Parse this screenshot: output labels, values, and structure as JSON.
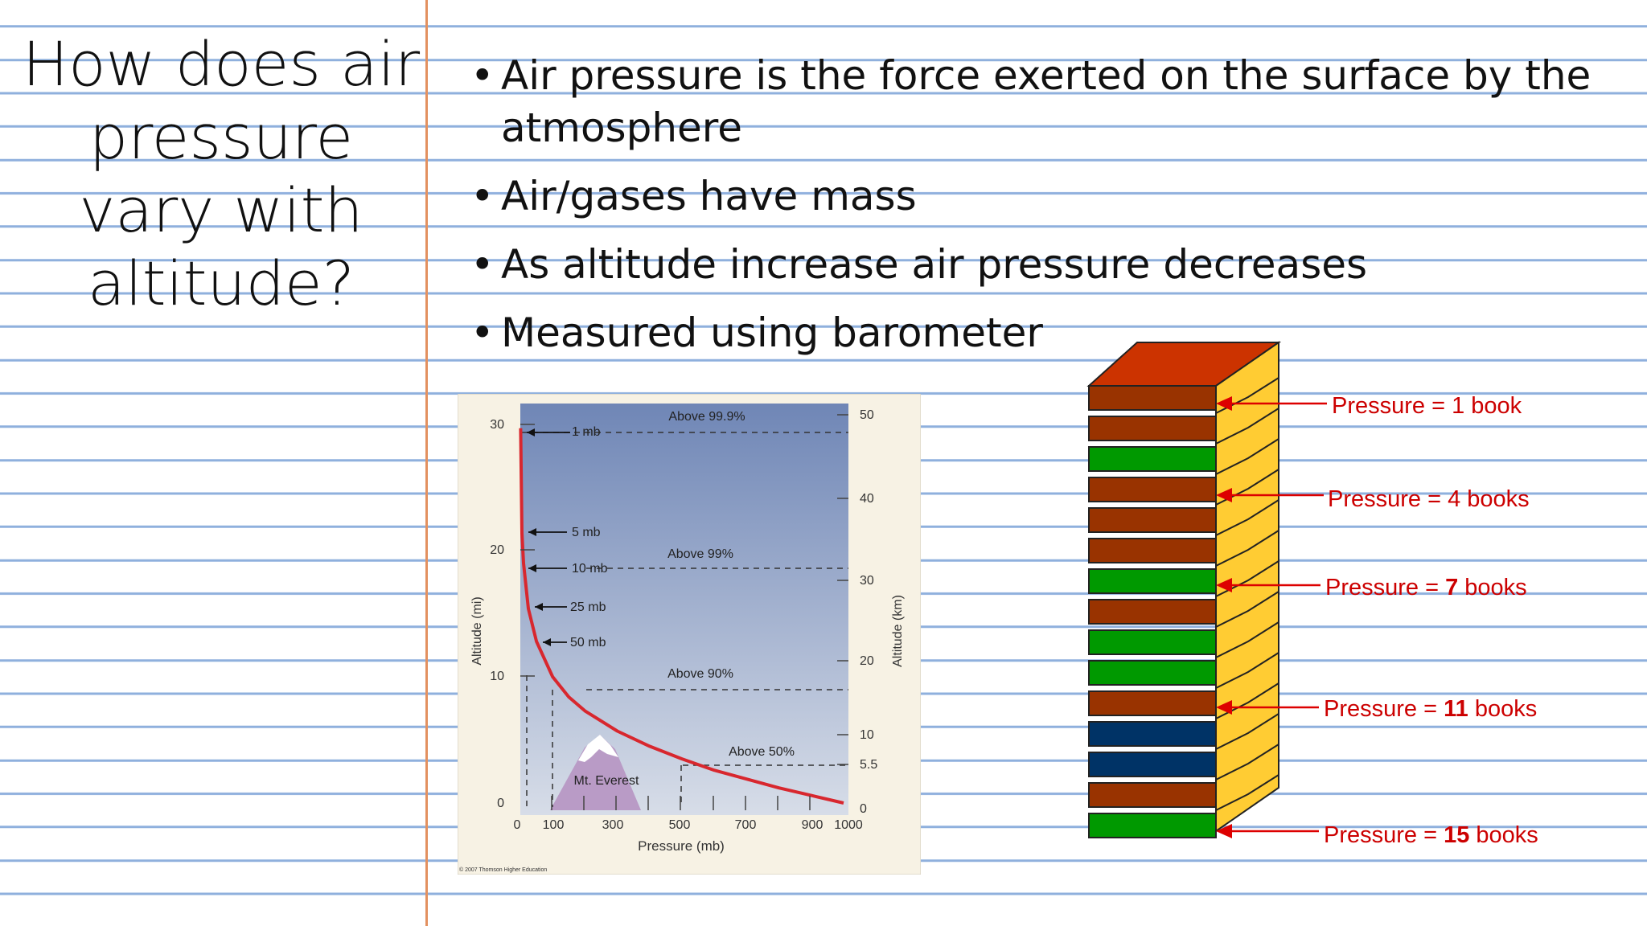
{
  "slide": {
    "title": "How does air pressure vary with altitude?",
    "bullets": [
      "Air pressure is the force exerted on the surface by the atmosphere",
      "Air/gases have mass",
      "As altitude increase air pressure decreases",
      "Measured using barometer"
    ]
  },
  "graph": {
    "left_axis_ticks": [
      "30",
      "20",
      "10",
      "0"
    ],
    "right_axis_ticks": [
      "50",
      "40",
      "30",
      "20",
      "10",
      "5.5",
      "0"
    ],
    "x_ticks": [
      "0",
      "100",
      "300",
      "500",
      "700",
      "900",
      "1000"
    ],
    "xlabel": "Pressure (mb)",
    "ylabel_left": "Altitude (mi)",
    "ylabel_right": "Altitude (km)",
    "pressure_labels": [
      "1 mb",
      "5 mb",
      "10 mb",
      "25 mb",
      "50 mb"
    ],
    "percent_labels": [
      "Above 99.9%",
      "Above 99%",
      "Above 90%",
      "Above 50%"
    ],
    "mountain_label": "Mt. Everest",
    "copyright": "© 2007 Thomson Higher Education",
    "curve_color": "#d8272e",
    "sky_top_color": "#6f86b6",
    "sky_bottom_color": "#d7dde8"
  },
  "chart_data": {
    "type": "line",
    "title": "",
    "xlabel": "Pressure (mb)",
    "ylabel": "Altitude (mi)",
    "xlim": [
      0,
      1000
    ],
    "ylim": [
      0,
      30
    ],
    "series": [
      {
        "x": [
          1000,
          900,
          800,
          700,
          600,
          500,
          400,
          300,
          200,
          150,
          100,
          50,
          25,
          10,
          5,
          1
        ],
        "y": [
          0,
          0.6,
          1.2,
          1.9,
          2.6,
          3.5,
          4.5,
          5.7,
          7.3,
          8.4,
          10.0,
          12.8,
          15.4,
          19.0,
          21.4,
          29.7
        ]
      }
    ]
  },
  "stack": {
    "labels": [
      {
        "prefix": "Pressure = ",
        "num": "1",
        "suffix": " book"
      },
      {
        "prefix": "Pressure = ",
        "num": "4",
        "suffix": " books"
      },
      {
        "prefix": "Pressure = ",
        "num": "7",
        "suffix": " books"
      },
      {
        "prefix": "Pressure = ",
        "num": "11",
        "suffix": " books"
      },
      {
        "prefix": "Pressure = ",
        "num": "15",
        "suffix": " books"
      }
    ],
    "book_colors": [
      "#993300",
      "#993300",
      "#009900",
      "#993300",
      "#993300",
      "#993300",
      "#009900",
      "#993300",
      "#009900",
      "#009900",
      "#993300",
      "#003366",
      "#003366",
      "#993300",
      "#009900"
    ],
    "top_color": "#cc3300",
    "page_color": "#ffcc33",
    "arrow_color": "#dd0000"
  }
}
